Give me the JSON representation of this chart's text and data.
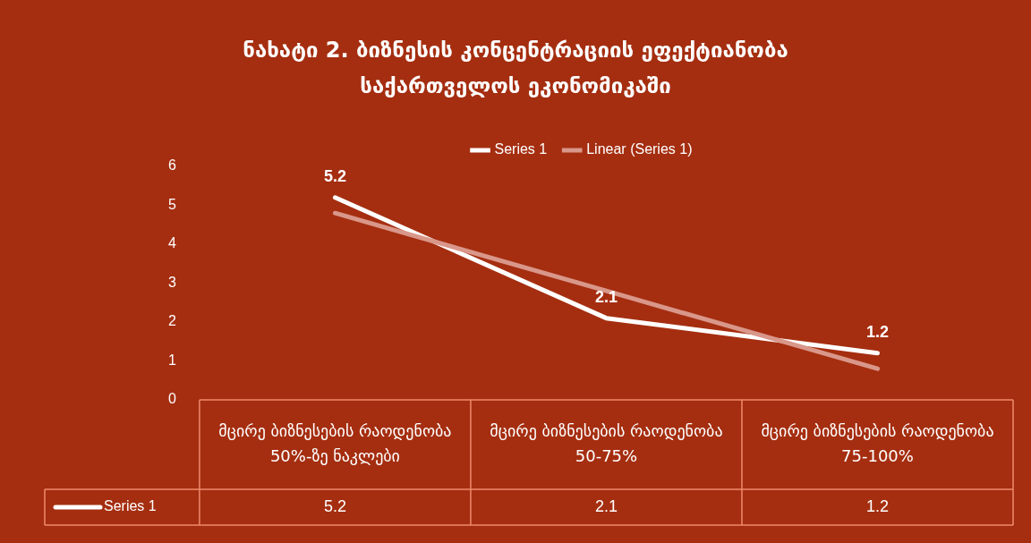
{
  "chart_data": {
    "type": "line",
    "title": "ნახატი 2. ბიზნესის კონცენტრაციის ეფექტიანობა საქართველოს ეკონომიკაში",
    "categories": [
      "მცირე ბიზნესების რაოდენობა 50%-ზე ნაკლები",
      "მცირე ბიზნესების რაოდენობა 50-75%",
      "მცირე ბიზნესების რაოდენობა 75-100%"
    ],
    "series": [
      {
        "name": "Series 1",
        "color": "#ffffff",
        "values": [
          5.2,
          2.1,
          1.2
        ],
        "value_labels": [
          "5.2",
          "2.1",
          "1.2"
        ]
      },
      {
        "name": "Linear (Series 1)",
        "type": "line",
        "color": "#d9978a",
        "values": [
          4.8,
          2.8,
          0.8
        ]
      }
    ],
    "ylim": [
      0,
      6
    ],
    "yticks": [
      0,
      1,
      2,
      3,
      4,
      5,
      6
    ],
    "grid": false,
    "legend": "top",
    "marker": "none",
    "line_style": "solid"
  }
}
